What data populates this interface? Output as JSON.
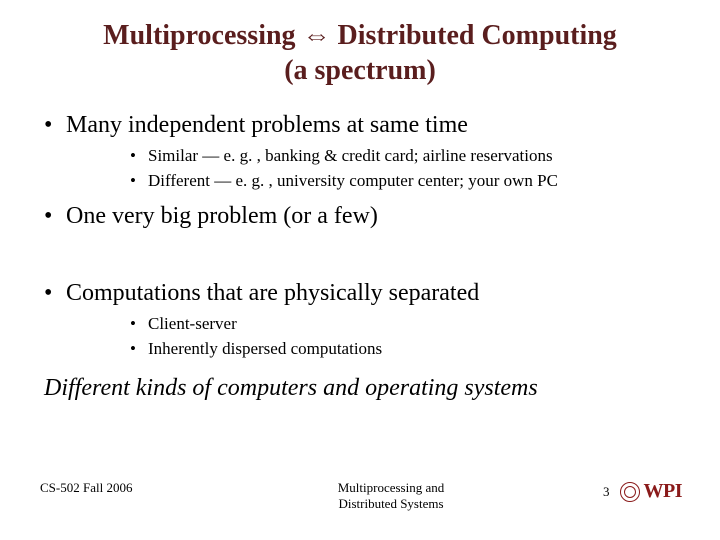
{
  "colors": {
    "title": "#5a1e1e",
    "body": "#000000",
    "accent": "#8a1a1a",
    "background": "#ffffff"
  },
  "typography": {
    "family": "Times New Roman",
    "title_size_pt": 28,
    "body_size_pt": 24,
    "sub_size_pt": 17,
    "footer_size_pt": 13
  },
  "title": {
    "line1": "Multiprocessing ⇔ Distributed Computing",
    "line2": "(a spectrum)"
  },
  "bullets": [
    {
      "text": "Many independent problems at same time",
      "children": [
        "Similar — e. g. , banking & credit card; airline reservations",
        "Different — e. g. , university computer center; your own PC"
      ]
    },
    {
      "text": "One very big problem (or a few)",
      "children": []
    },
    {
      "text": "Computations that are physically separated",
      "children": [
        "Client-server",
        "Inherently dispersed computations"
      ]
    }
  ],
  "footnote": "Different kinds of computers and operating systems",
  "footer": {
    "left": "CS-502 Fall 2006",
    "center_line1": "Multiprocessing and",
    "center_line2": "Distributed Systems",
    "page": "3",
    "org": "WPI"
  }
}
